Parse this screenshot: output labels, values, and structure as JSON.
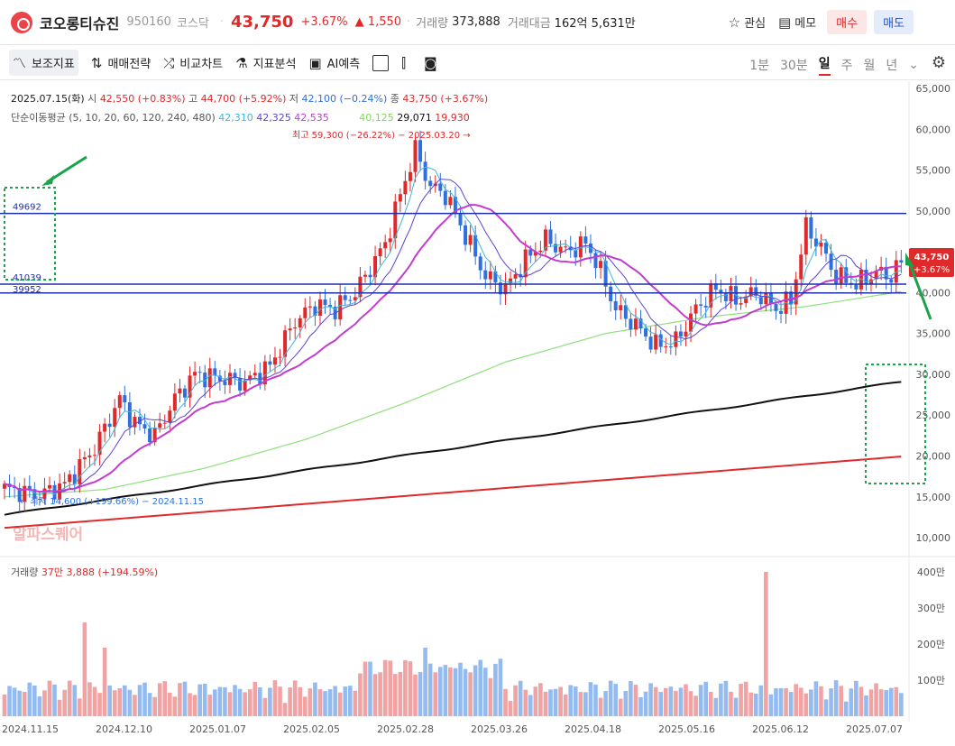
{
  "header": {
    "name": "코오롱티슈진",
    "code": "950160",
    "market": "코스닥",
    "price": "43,750",
    "change_pct": "+3.67%",
    "change_abs": "▲ 1,550",
    "volume_label": "거래량",
    "volume": "373,888",
    "value_label": "거래대금",
    "value": "162억 5,631만",
    "watch": "관심",
    "memo": "메모",
    "buy": "매수",
    "sell": "매도",
    "icons": [
      "logo",
      "star-icon",
      "memo-icon"
    ]
  },
  "toolbar": {
    "indicator": "보조지표",
    "strategy": "매매전략",
    "compare": "비교차트",
    "analysis": "지표분석",
    "ai": "AI예측",
    "periods": [
      "1분",
      "30분",
      "일",
      "주",
      "월",
      "년"
    ],
    "active_period": "일"
  },
  "info": {
    "date": "2025.07.15(화)",
    "open_l": "시",
    "open": "42,550 (+0.83%)",
    "high_l": "고",
    "high": "44,700 (+5.92%)",
    "low_l": "저",
    "low": "42,100 (−0.24%)",
    "close_l": "종",
    "close": "43,750 (+3.67%)",
    "ma_label": "단순이동평균 (5, 10, 20, 60, 120, 240, 480)",
    "ma_vals": [
      "42,310",
      "42,325",
      "42,535",
      "40,125",
      "29,071",
      "19,930"
    ],
    "ma_colors": [
      "#3fb7d8",
      "#5b43d6",
      "#c23cd0",
      "#7ed957",
      "#111111",
      "#e0292b"
    ]
  },
  "annotations": {
    "high": "최고 59,300 (−26.22%) − 2025.03.20",
    "low": "최저 14,600 (+199.66%) − 2024.11.15",
    "lines": [
      "49692",
      "41039",
      "39952"
    ],
    "watermark": "알파스퀘어",
    "price_tag": "43,750",
    "price_tag_pct": "+3.67%"
  },
  "volume_info": {
    "label": "거래량",
    "value": "37만 3,888 (+194.59%)"
  },
  "colors": {
    "up": "#e0292b",
    "down": "#2f6fe0",
    "hline": "#1f2fa8",
    "ma120": "#111111",
    "ma240": "#e0292b",
    "ma60": "#8ee07a"
  },
  "chart_data": {
    "type": "candlestick",
    "ylim": [
      10000,
      65000
    ],
    "y_ticks": [
      "65,000",
      "60,000",
      "55,000",
      "50,000",
      "45,000",
      "40,000",
      "35,000",
      "30,000",
      "25,000",
      "20,000",
      "15,000",
      "10,000"
    ],
    "vol_ticks": [
      "400만",
      "300만",
      "200만",
      "100만"
    ],
    "x_ticks": [
      "2024.11.15",
      "2024.12.10",
      "2025.01.07",
      "2025.02.05",
      "2025.02.28",
      "2025.03.26",
      "2025.04.18",
      "2025.05.16",
      "2025.06.12",
      "2025.07.07"
    ],
    "hlines": [
      49692,
      41039,
      39952
    ],
    "anchors": [
      [
        0,
        16000
      ],
      [
        7,
        15200
      ],
      [
        12,
        16500
      ],
      [
        18,
        21000
      ],
      [
        23,
        27000
      ],
      [
        26,
        24000
      ],
      [
        30,
        22500
      ],
      [
        34,
        27000
      ],
      [
        38,
        30000
      ],
      [
        43,
        29500
      ],
      [
        48,
        29000
      ],
      [
        53,
        31000
      ],
      [
        58,
        36500
      ],
      [
        62,
        38500
      ],
      [
        66,
        38000
      ],
      [
        70,
        40000
      ],
      [
        73,
        43000
      ],
      [
        76,
        46000
      ],
      [
        79,
        52000
      ],
      [
        82,
        57500
      ],
      [
        85,
        53000
      ],
      [
        88,
        52000
      ],
      [
        92,
        47000
      ],
      [
        96,
        42000
      ],
      [
        100,
        40500
      ],
      [
        104,
        44000
      ],
      [
        108,
        46500
      ],
      [
        112,
        45000
      ],
      [
        116,
        46000
      ],
      [
        118,
        44000
      ],
      [
        122,
        38000
      ],
      [
        126,
        36000
      ],
      [
        130,
        33500
      ],
      [
        134,
        34000
      ],
      [
        138,
        38000
      ],
      [
        142,
        40500
      ],
      [
        146,
        39000
      ],
      [
        150,
        40000
      ],
      [
        154,
        38000
      ],
      [
        157,
        39000
      ],
      [
        160,
        48000
      ],
      [
        163,
        45500
      ],
      [
        166,
        42000
      ],
      [
        170,
        41000
      ],
      [
        174,
        42500
      ],
      [
        177,
        42000
      ],
      [
        179,
        43750
      ]
    ],
    "ma60_anchors": [
      [
        0,
        15000
      ],
      [
        20,
        15900
      ],
      [
        40,
        18500
      ],
      [
        60,
        22000
      ],
      [
        80,
        26500
      ],
      [
        100,
        31500
      ],
      [
        120,
        35000
      ],
      [
        140,
        37000
      ],
      [
        160,
        38300
      ],
      [
        179,
        40125
      ]
    ],
    "ma120": [
      [
        0,
        12800
      ],
      [
        179,
        29071
      ]
    ],
    "ma240": [
      [
        0,
        11200
      ],
      [
        179,
        19930
      ]
    ],
    "volume_peaks": [
      [
        16,
        2.6
      ],
      [
        20,
        1.9
      ],
      [
        84,
        1.9
      ],
      [
        152,
        4.0
      ]
    ]
  }
}
